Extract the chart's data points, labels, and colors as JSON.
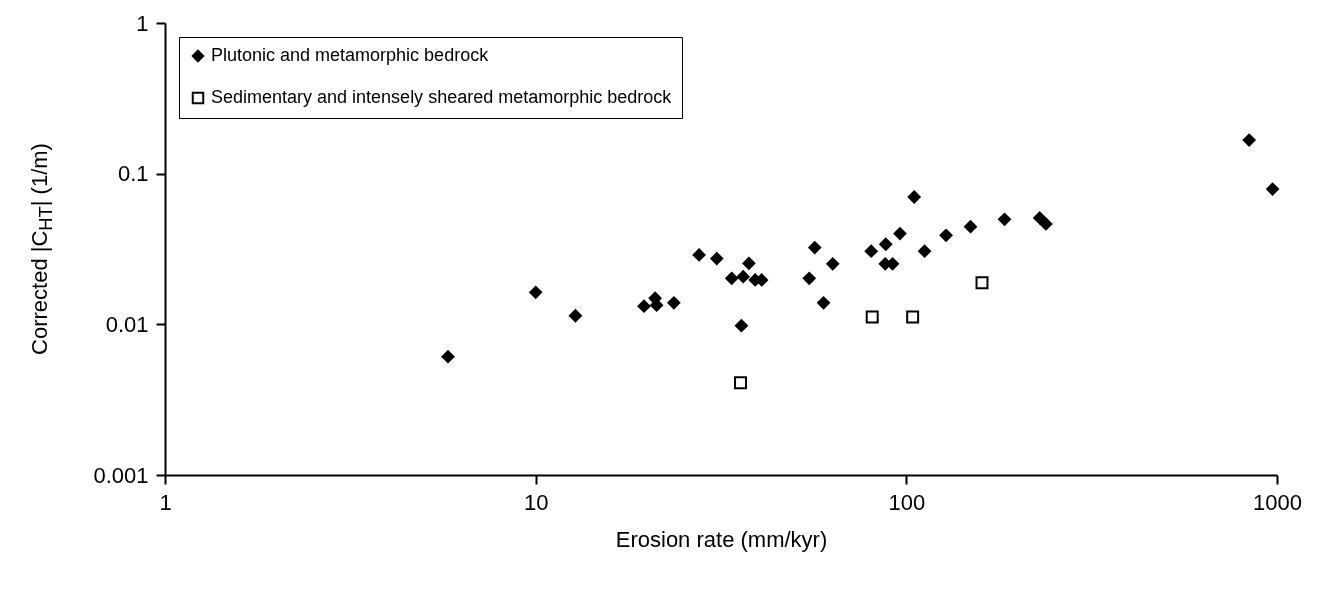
{
  "chart_data": {
    "type": "scatter",
    "xlabel": "Erosion rate (mm/kyr)",
    "ylabel": "Corrected |C$_{HT}$| (1/m)",
    "log": "xy",
    "xlim": [
      1,
      1000
    ],
    "xticks": [
      1,
      10,
      100,
      1000
    ],
    "ylim": [
      0.001,
      1
    ],
    "yticks": [
      0.001,
      0.01,
      0.1,
      1
    ],
    "grid": false,
    "legend": "top left",
    "series": [
      {
        "name": "Plutonic and metamorphic bedrock",
        "color": "#000000",
        "marker": "diamond",
        "x": [
          5.8,
          10.0,
          12.8,
          19.6,
          21.0,
          21.2,
          23.6,
          27.6,
          30.8,
          33.8,
          35.9,
          37.6,
          36.3,
          39.1,
          40.7,
          54.7,
          56.6,
          63.3,
          59.8,
          80.4,
          88.0,
          96.1,
          87.7,
          91.8,
          105,
          112,
          128,
          149,
          184,
          229,
          238,
          841,
          973
        ],
        "values": [
          0.0061,
          0.0163,
          0.0114,
          0.0132,
          0.0149,
          0.0134,
          0.0139,
          0.0289,
          0.0273,
          0.0202,
          0.0098,
          0.0254,
          0.0207,
          0.0197,
          0.0197,
          0.0202,
          0.0323,
          0.0252,
          0.0139,
          0.0306,
          0.034,
          0.04,
          0.0252,
          0.0252,
          0.07,
          0.0306,
          0.039,
          0.0445,
          0.0498,
          0.0508,
          0.0464,
          0.167,
          0.079
        ]
      },
      {
        "name": "Sedimentary and intensely sheared metamorphic bedrock",
        "color": "#000000",
        "marker": "square",
        "x": [
          35.7,
          80.9,
          104,
          160
        ],
        "values": [
          0.0041,
          0.0112,
          0.0112,
          0.0189
        ]
      }
    ]
  }
}
